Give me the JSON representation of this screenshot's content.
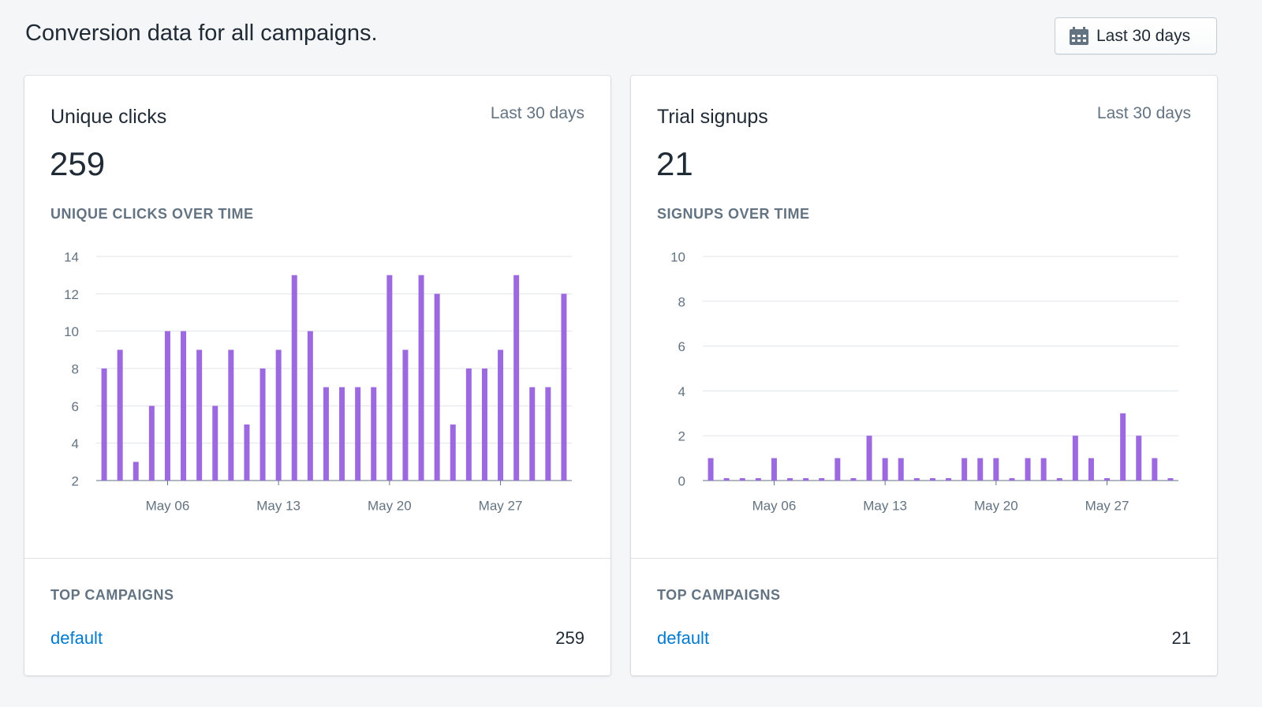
{
  "header": {
    "title": "Conversion data for all campaigns.",
    "button": "Last 30 days"
  },
  "cards": [
    {
      "title": "Unique clicks",
      "period": "Last 30 days",
      "total": 259,
      "campaigns_heading": "TOP CAMPAIGNS",
      "campaign": {
        "name": "default",
        "value": 259
      }
    },
    {
      "title": "Trial signups",
      "period": "Last 30 days",
      "total": 21,
      "campaigns_heading": "TOP CAMPAIGNS",
      "campaign": {
        "name": "default",
        "value": 21
      }
    }
  ],
  "chart_data": [
    {
      "type": "bar",
      "title": "UNIQUE CLICKS OVER TIME",
      "color": "#9c6ade",
      "categories": [
        null,
        null,
        null,
        null,
        "May 06",
        null,
        null,
        null,
        null,
        null,
        null,
        "May 13",
        null,
        null,
        null,
        null,
        null,
        null,
        "May 20",
        null,
        null,
        null,
        null,
        null,
        null,
        "May 27",
        null,
        null,
        null,
        null
      ],
      "values": [
        8,
        9,
        3,
        6,
        10,
        10,
        9,
        6,
        9,
        5,
        8,
        9,
        13,
        10,
        7,
        7,
        7,
        7,
        13,
        9,
        13,
        12,
        5,
        8,
        8,
        9,
        13,
        7,
        7,
        12
      ],
      "ylim": [
        2,
        14
      ],
      "yticks": [
        2,
        4,
        6,
        8,
        10,
        12,
        14
      ],
      "grid": true
    },
    {
      "type": "bar",
      "title": "SIGNUPS OVER TIME",
      "color": "#9c6ade",
      "categories": [
        null,
        null,
        null,
        null,
        "May 06",
        null,
        null,
        null,
        null,
        null,
        null,
        "May 13",
        null,
        null,
        null,
        null,
        null,
        null,
        "May 20",
        null,
        null,
        null,
        null,
        null,
        null,
        "May 27",
        null,
        null,
        null,
        null
      ],
      "values": [
        1,
        0,
        0,
        0,
        1,
        0,
        0,
        0,
        1,
        0,
        2,
        1,
        1,
        0,
        0,
        0,
        1,
        1,
        1,
        0,
        1,
        1,
        0,
        2,
        1,
        0,
        3,
        2,
        1,
        0
      ],
      "ylim": [
        0,
        10
      ],
      "yticks": [
        0,
        2,
        4,
        6,
        8,
        10
      ],
      "grid": true
    }
  ]
}
